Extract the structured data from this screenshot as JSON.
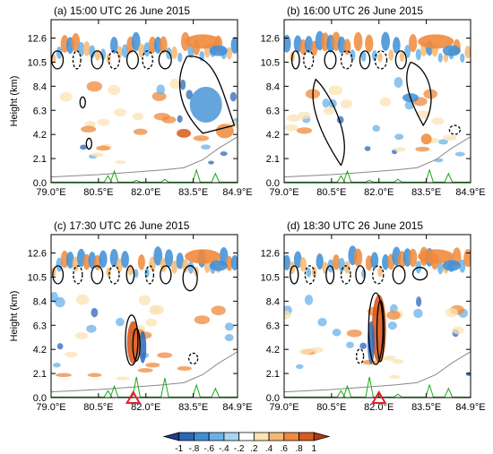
{
  "figure": {
    "ylabel": "Height (km)",
    "colorbar": {
      "ticks": [
        "-1",
        "-.8",
        "-.6",
        "-.4",
        "-.2",
        ".2",
        ".4",
        ".6",
        ".8",
        "1"
      ],
      "colors": [
        "#1f3e8c",
        "#2b67b8",
        "#3d8ed6",
        "#69b2e8",
        "#a9d4f2",
        "#ffffff",
        "#fbe3b3",
        "#f6b873",
        "#ef8a3c",
        "#d85a1d",
        "#b03a12"
      ]
    }
  },
  "chart_data": [
    {
      "type": "heatmap",
      "title": "(a) 15:00 UTC 26 June 2015",
      "ylabel": "Height (km)",
      "x_ticks": [
        "79.0°E",
        "80.5°E",
        "82.0°E",
        "83.5°E",
        "84.9°E"
      ],
      "x_values": [
        79.0,
        80.5,
        82.0,
        83.5,
        84.9
      ],
      "xlim": [
        79.0,
        84.9
      ],
      "y_ticks": [
        "0.0",
        "2.1",
        "4.2",
        "6.3",
        "8.4",
        "10.5",
        "12.6"
      ],
      "y_values": [
        0.0,
        2.1,
        4.2,
        6.3,
        8.4,
        10.5,
        12.6
      ],
      "ylim": [
        0,
        14.2
      ],
      "marker": null
    },
    {
      "type": "heatmap",
      "title": "(b) 16:00 UTC 26 June 2015",
      "ylabel": "",
      "x_ticks": [
        "79.0°E",
        "80.5°E",
        "82.0°E",
        "83.5°E",
        "84.9°E"
      ],
      "x_values": [
        79.0,
        80.5,
        82.0,
        83.5,
        84.9
      ],
      "xlim": [
        79.0,
        84.9
      ],
      "y_ticks": [
        "0.0",
        "2.1",
        "4.2",
        "6.3",
        "8.4",
        "10.5",
        "12.6"
      ],
      "y_values": [
        0.0,
        2.1,
        4.2,
        6.3,
        8.4,
        10.5,
        12.6
      ],
      "ylim": [
        0,
        14.2
      ],
      "marker": null
    },
    {
      "type": "heatmap",
      "title": "(c) 17:30 UTC 26 June 2015",
      "ylabel": "Height (km)",
      "x_ticks": [
        "79.0°E",
        "80.5°E",
        "82.0°E",
        "83.5°E",
        "84.9°E"
      ],
      "x_values": [
        79.0,
        80.5,
        82.0,
        83.5,
        84.9
      ],
      "xlim": [
        79.0,
        84.9
      ],
      "y_ticks": [
        "0.0",
        "2.1",
        "4.2",
        "6.3",
        "8.4",
        "10.5",
        "12.6"
      ],
      "y_values": [
        0.0,
        2.1,
        4.2,
        6.3,
        8.4,
        10.5,
        12.6
      ],
      "ylim": [
        0,
        14.2
      ],
      "marker": {
        "x": 81.6,
        "shape": "triangle",
        "color": "#e0202a"
      }
    },
    {
      "type": "heatmap",
      "title": "(d) 18:30 UTC 26 June 2015",
      "ylabel": "",
      "x_ticks": [
        "79.0°E",
        "80.5°E",
        "82.0°E",
        "83.5°E",
        "84.9°E"
      ],
      "x_values": [
        79.0,
        80.5,
        82.0,
        83.5,
        84.9
      ],
      "xlim": [
        79.0,
        84.9
      ],
      "y_ticks": [
        "0.0",
        "2.1",
        "4.2",
        "6.3",
        "8.4",
        "10.5",
        "12.6"
      ],
      "y_values": [
        0.0,
        2.1,
        4.2,
        6.3,
        8.4,
        10.5,
        12.6
      ],
      "ylim": [
        0,
        14.2
      ],
      "marker": {
        "x": 82.0,
        "shape": "triangle",
        "color": "#e0202a"
      }
    }
  ]
}
